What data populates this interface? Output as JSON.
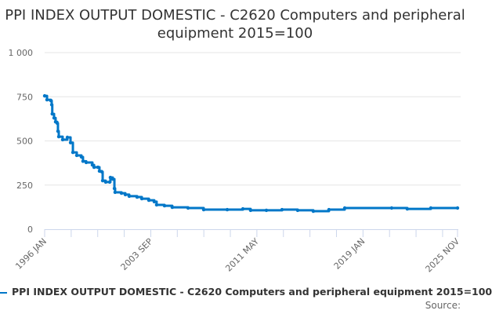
{
  "chart_data": {
    "type": "line",
    "title": "PPI INDEX OUTPUT DOMESTIC - C2620 Computers and peripheral equipment 2015=100",
    "xlabel": "",
    "ylabel": "",
    "ylim": [
      0,
      1000
    ],
    "yticks": [
      {
        "value": 0,
        "label": "0"
      },
      {
        "value": 250,
        "label": "250"
      },
      {
        "value": 500,
        "label": "500"
      },
      {
        "value": 750,
        "label": "750"
      },
      {
        "value": 1000,
        "label": "1 000"
      }
    ],
    "xlim": [
      1996.0,
      2025.83
    ],
    "xticks_labeled": [
      {
        "value": 1996.0,
        "label": "1996 JAN"
      },
      {
        "value": 2003.67,
        "label": "2003 SEP"
      },
      {
        "value": 2011.33,
        "label": "2011 MAY"
      },
      {
        "value": 2019.0,
        "label": "2019 JAN"
      },
      {
        "value": 2025.83,
        "label": "2025 NOV"
      }
    ],
    "grid": true,
    "legend_position": "bottom",
    "series": [
      {
        "name": "PPI INDEX OUTPUT DOMESTIC - C2620 Computers and peripheral equipment 2015=100",
        "color": "#0077c8",
        "x": [
          1996.0,
          1996.17,
          1996.45,
          1996.51,
          1996.55,
          1996.68,
          1996.79,
          1996.91,
          1996.96,
          1997.02,
          1997.3,
          1997.64,
          1997.87,
          1998.04,
          1998.32,
          1998.66,
          1998.77,
          1999.0,
          1999.45,
          1999.57,
          1999.85,
          1999.96,
          2000.13,
          2000.19,
          2000.41,
          2000.7,
          2000.75,
          2000.92,
          2001.04,
          2001.09,
          2001.55,
          2001.83,
          2002.11,
          2002.68,
          2003.02,
          2003.53,
          2003.92,
          2004.09,
          2004.66,
          2005.22,
          2006.36,
          2007.49,
          2009.19,
          2010.32,
          2010.88,
          2012.02,
          2013.15,
          2014.28,
          2015.41,
          2016.54,
          2017.68,
          2021.07,
          2022.2,
          2023.9,
          2025.83
        ],
        "values": [
          755,
          733,
          728,
          705,
          653,
          630,
          608,
          600,
          555,
          524,
          507,
          520,
          490,
          435,
          418,
          409,
          385,
          378,
          364,
          351,
          351,
          329,
          325,
          275,
          267,
          267,
          293,
          284,
          231,
          209,
          204,
          196,
          187,
          182,
          173,
          164,
          156,
          138,
          133,
          124,
          120,
          111,
          111,
          115,
          107,
          107,
          111,
          107,
          102,
          111,
          120,
          120,
          115,
          120,
          120
        ]
      }
    ],
    "source_label": "Source:"
  }
}
